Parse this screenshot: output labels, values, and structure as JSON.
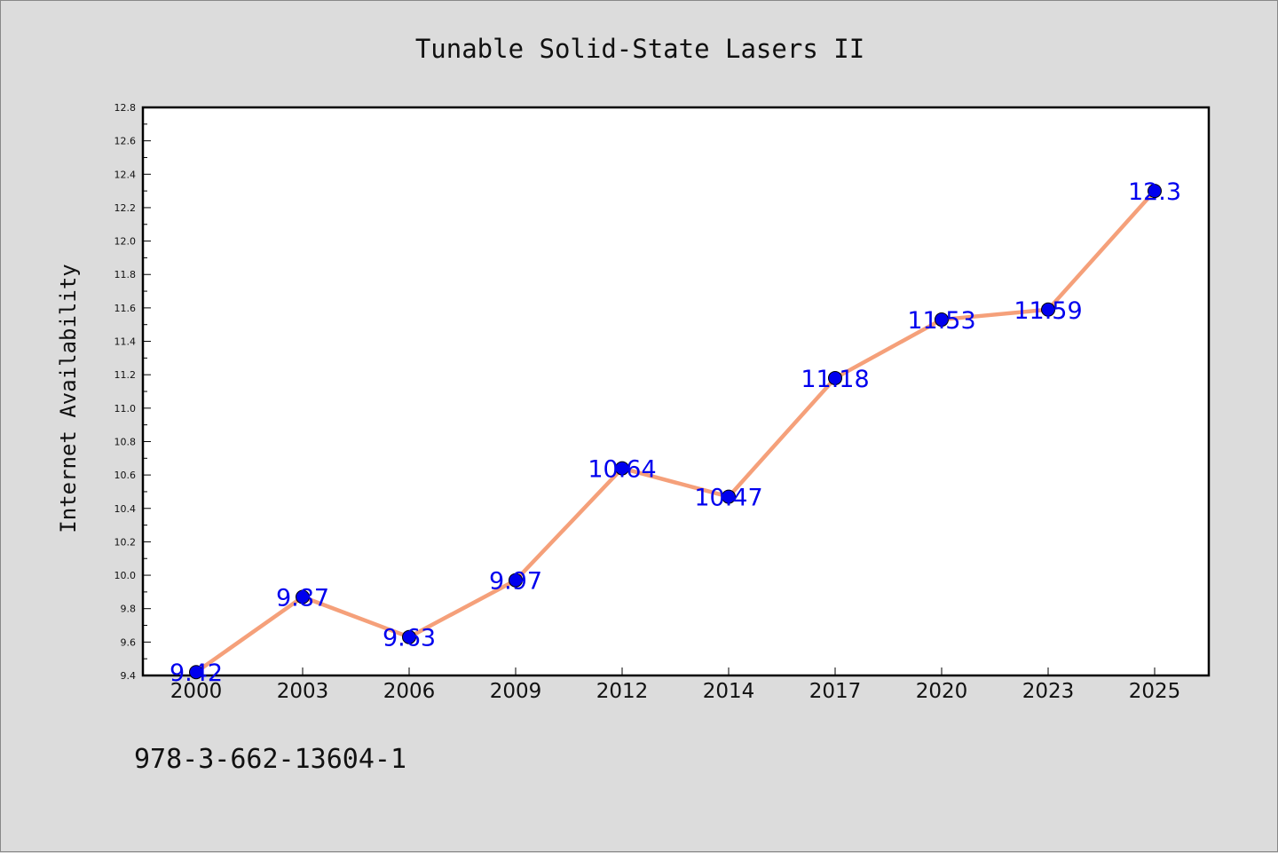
{
  "footer": {
    "isbn": "978-3-662-13604-1"
  },
  "chart_data": {
    "type": "line",
    "title": "Tunable Solid-State Lasers II",
    "xlabel": "",
    "ylabel": "Internet Availability",
    "categories": [
      "2000",
      "2003",
      "2006",
      "2009",
      "2012",
      "2014",
      "2017",
      "2020",
      "2023",
      "2025"
    ],
    "series": [
      {
        "values": [
          9.42,
          9.87,
          9.63,
          9.97,
          10.64,
          10.47,
          11.18,
          11.53,
          11.59,
          12.3
        ],
        "labels": [
          "9.42",
          "9.87",
          "9.63",
          "9.97",
          "10.64",
          "10.47",
          "11.18",
          "11.53",
          "11.59",
          "12.3"
        ],
        "line_color": "#f5a07a",
        "marker_color": "#0000ee"
      }
    ],
    "ylim": [
      9.4,
      12.8
    ],
    "yticks": [
      "9.4",
      "9.6",
      "9.8",
      "10.0",
      "10.2",
      "10.4",
      "10.6",
      "10.8",
      "11.0",
      "11.2",
      "11.4",
      "11.6",
      "11.8",
      "12.0",
      "12.2",
      "12.4",
      "12.6",
      "12.8"
    ],
    "grid": false,
    "legend": "none"
  }
}
